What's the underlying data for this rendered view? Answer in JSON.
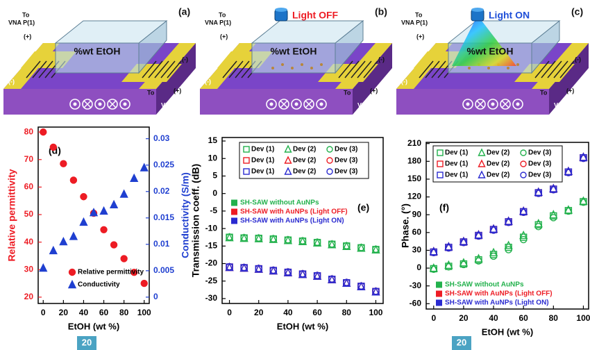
{
  "diagrams": [
    {
      "label": "(a)",
      "liquid": "%wt EtOH",
      "port1_to": "To",
      "port1": "VNA P(1)",
      "sign1": "(+)",
      "sign2": "(-)",
      "sign3": "(-)",
      "port2_to": "To",
      "sign4": "(+)",
      "port2": "VNA P(2)"
    },
    {
      "label": "(b)",
      "liquid": "%wt EtOH",
      "port1_to": "To",
      "port1": "VNA P(1)",
      "sign1": "(+)",
      "sign2": "(-)",
      "sign3": "(-)",
      "port2_to": "To",
      "sign4": "(+)",
      "port2": "VNA P(2)",
      "light": "Light OFF",
      "light_color": "#ed1c24"
    },
    {
      "label": "(c)",
      "liquid": "%wt EtOH",
      "port1_to": "To",
      "port1": "VNA P(1)",
      "sign1": "(+)",
      "sign2": "(-)",
      "sign3": "(-)",
      "port2_to": "To",
      "sign4": "(+)",
      "port2": "VNA P(2)",
      "light": "Light ON",
      "light_color": "#1f4fd8"
    }
  ],
  "chart_data": [
    {
      "type": "scatter",
      "panel_label": "(d)",
      "x_label": "EtOH (wt %)",
      "y_label": "Relative permittivity",
      "y2_label": "Conductivity (S/m)",
      "y_color": "#ed1c24",
      "y2_color": "#1f3fd0",
      "x": [
        0,
        10,
        20,
        30,
        40,
        50,
        60,
        70,
        80,
        90,
        100
      ],
      "xlim": [
        -5,
        105
      ],
      "xticks": [
        0,
        20,
        40,
        60,
        80,
        100
      ],
      "ylim": [
        17.7,
        81.8
      ],
      "yticks": [
        20,
        30,
        40,
        50,
        60,
        70,
        80
      ],
      "y2lim": [
        -0.0012,
        0.0322
      ],
      "y2ticks": [
        0,
        0.005,
        0.01,
        0.015,
        0.02,
        0.025,
        0.03
      ],
      "series": [
        {
          "name": "Relative permittivity",
          "color": "#ed1c24",
          "marker": "circle",
          "filled": true,
          "values": [
            80,
            74.5,
            68.5,
            62.5,
            56.5,
            50.5,
            44.5,
            39,
            34,
            29,
            25
          ]
        },
        {
          "name": "Conductivity",
          "color": "#1f3fd0",
          "marker": "triangle",
          "filled": true,
          "axis": "y2",
          "values": [
            0.0055,
            0.0088,
            0.0105,
            0.0115,
            0.0142,
            0.016,
            0.0163,
            0.0175,
            0.0195,
            0.0225,
            0.0245
          ]
        }
      ]
    },
    {
      "type": "scatter",
      "panel_label": "(e)",
      "x_label": "EtOH (wt %)",
      "y_label": "Transmission coeff. (dB)",
      "x": [
        0,
        10,
        20,
        30,
        40,
        50,
        60,
        70,
        80,
        90,
        100
      ],
      "xlim": [
        -5,
        105
      ],
      "xticks": [
        0,
        20,
        40,
        60,
        80,
        100
      ],
      "ylim": [
        -31.4,
        16
      ],
      "yticks": [
        -30,
        -25,
        -20,
        -15,
        -10,
        -5,
        0,
        5,
        10,
        15
      ],
      "group_legend": [
        {
          "label": "SH-SAW without AuNPs",
          "color": "#22b14c"
        },
        {
          "label": "SH-SAW with AuNPs (Light OFF)",
          "color": "#ed1c24"
        },
        {
          "label": "SH-SAW with AuNPs (Light ON)",
          "color": "#2a2ad0"
        }
      ],
      "series": [
        {
          "name": "Dev (1)",
          "color": "#22b14c",
          "marker": "square",
          "filled": false,
          "values": [
            -12.5,
            -12.7,
            -12.8,
            -13,
            -13.3,
            -13.6,
            -14,
            -14.5,
            -15,
            -15.5,
            -16
          ]
        },
        {
          "name": "Dev (2)",
          "color": "#22b14c",
          "marker": "triangle",
          "filled": false,
          "values": [
            -12.6,
            -12.8,
            -12.9,
            -13.1,
            -13.4,
            -13.7,
            -14.1,
            -14.6,
            -15.1,
            -15.6,
            -16.1
          ]
        },
        {
          "name": "Dev (3)",
          "color": "#22b14c",
          "marker": "circle",
          "filled": false,
          "values": [
            -12.4,
            -12.6,
            -12.7,
            -12.9,
            -13.2,
            -13.5,
            -13.9,
            -14.4,
            -14.9,
            -15.4,
            -15.9
          ]
        },
        {
          "name": "Dev (1)",
          "color": "#ed1c24",
          "marker": "square",
          "filled": false,
          "values": [
            -21,
            -21.2,
            -21.5,
            -22,
            -22.5,
            -23,
            -23.5,
            -24.5,
            -25.5,
            -26.5,
            -28
          ]
        },
        {
          "name": "Dev (2)",
          "color": "#ed1c24",
          "marker": "triangle",
          "filled": false,
          "values": [
            -21.1,
            -21.3,
            -21.6,
            -22.1,
            -22.6,
            -23.1,
            -23.6,
            -24.6,
            -25.6,
            -26.6,
            -28.1
          ]
        },
        {
          "name": "Dev (3)",
          "color": "#ed1c24",
          "marker": "circle",
          "filled": false,
          "values": [
            -20.9,
            -21.1,
            -21.4,
            -21.9,
            -22.4,
            -22.9,
            -23.4,
            -24.4,
            -25.4,
            -26.4,
            -27.9
          ]
        },
        {
          "name": "Dev (1)",
          "color": "#2a2ad0",
          "marker": "square",
          "filled": false,
          "values": [
            -21,
            -21.2,
            -21.5,
            -22,
            -22.5,
            -23,
            -23.5,
            -24.5,
            -25.5,
            -26.5,
            -28
          ]
        },
        {
          "name": "Dev (2)",
          "color": "#2a2ad0",
          "marker": "triangle",
          "filled": false,
          "values": [
            -21.1,
            -21.3,
            -21.6,
            -22.1,
            -22.6,
            -23.1,
            -23.6,
            -24.6,
            -25.6,
            -26.6,
            -28.1
          ]
        },
        {
          "name": "Dev (3)",
          "color": "#2a2ad0",
          "marker": "circle",
          "filled": false,
          "values": [
            -20.9,
            -21.1,
            -21.4,
            -21.9,
            -22.4,
            -22.9,
            -23.4,
            -24.4,
            -25.4,
            -26.4,
            -27.9
          ]
        }
      ]
    },
    {
      "type": "scatter",
      "panel_label": "(f)",
      "x_label": "EtOH (wt %)",
      "y_label": "Phase. (°)",
      "x": [
        0,
        10,
        20,
        30,
        40,
        50,
        60,
        70,
        80,
        90,
        100
      ],
      "xlim": [
        -5,
        103.5
      ],
      "xticks": [
        0,
        20,
        40,
        60,
        80,
        100
      ],
      "ylim": [
        -69,
        212
      ],
      "yticks": [
        -60,
        -30,
        0,
        30,
        60,
        90,
        120,
        150,
        180,
        210
      ],
      "group_legend": [
        {
          "label": "SH-SAW without AuNPs",
          "color": "#22b14c"
        },
        {
          "label": "SH-SAW with AuNPs (Light OFF)",
          "color": "#ed1c24"
        },
        {
          "label": "SH-SAW with AuNPs (Light ON)",
          "color": "#2a2ad0"
        }
      ],
      "series": [
        {
          "name": "Dev (1)",
          "color": "#22b14c",
          "marker": "square",
          "filled": false,
          "values": [
            -1,
            3,
            7,
            14,
            23,
            35,
            52,
            73,
            88,
            97,
            112
          ]
        },
        {
          "name": "Dev (2)",
          "color": "#22b14c",
          "marker": "triangle",
          "filled": false,
          "values": [
            0,
            5,
            9,
            16,
            26,
            38,
            55,
            75,
            90,
            98,
            113
          ]
        },
        {
          "name": "Dev (3)",
          "color": "#22b14c",
          "marker": "circle",
          "filled": false,
          "values": [
            -2,
            2,
            6,
            12,
            20,
            31,
            48,
            70,
            85,
            96,
            111
          ]
        },
        {
          "name": "Dev (1)",
          "color": "#ed1c24",
          "marker": "square",
          "filled": false,
          "values": [
            27,
            35,
            44,
            55,
            65,
            78,
            95,
            127,
            133,
            162,
            186
          ]
        },
        {
          "name": "Dev (2)",
          "color": "#ed1c24",
          "marker": "triangle",
          "filled": false,
          "values": [
            28,
            36,
            45,
            56,
            66,
            79,
            96,
            128,
            134,
            163,
            187
          ]
        },
        {
          "name": "Dev (3)",
          "color": "#ed1c24",
          "marker": "circle",
          "filled": false,
          "values": [
            26,
            34,
            43,
            54,
            64,
            77,
            94,
            126,
            132,
            161,
            185
          ]
        },
        {
          "name": "Dev (1)",
          "color": "#2a2ad0",
          "marker": "square",
          "filled": false,
          "values": [
            27,
            35,
            44,
            55,
            65,
            78,
            95,
            127,
            133,
            162,
            186
          ]
        },
        {
          "name": "Dev (2)",
          "color": "#2a2ad0",
          "marker": "triangle",
          "filled": false,
          "values": [
            28,
            36,
            45,
            56,
            66,
            79,
            96,
            128,
            134,
            163,
            187
          ]
        },
        {
          "name": "Dev (3)",
          "color": "#2a2ad0",
          "marker": "circle",
          "filled": false,
          "values": [
            26,
            34,
            43,
            54,
            64,
            77,
            94,
            126,
            132,
            161,
            185
          ]
        }
      ]
    }
  ],
  "page_numbers": [
    "20",
    "20"
  ]
}
